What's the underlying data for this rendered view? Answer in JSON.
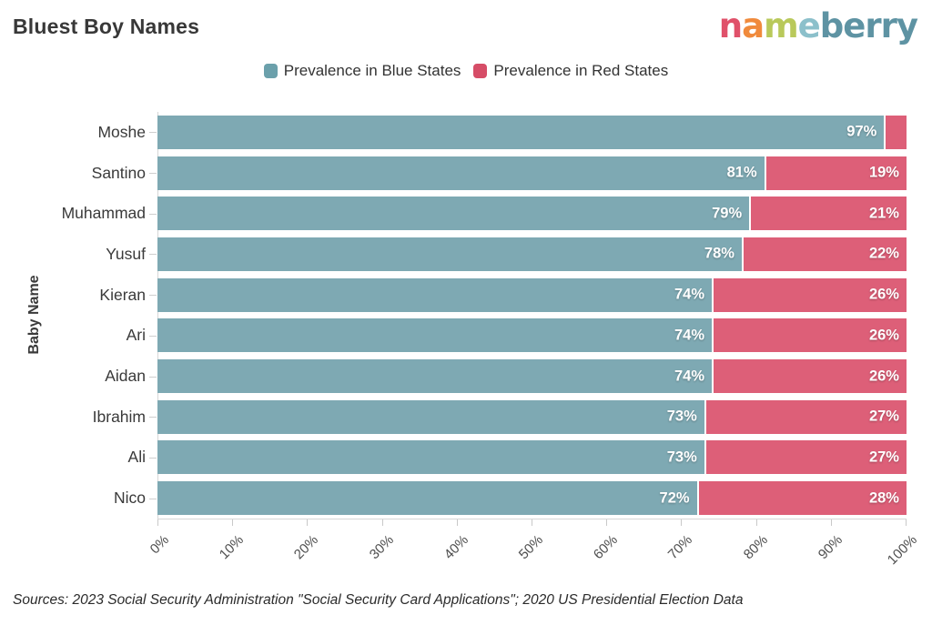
{
  "title": "Bluest Boy Names",
  "logo": {
    "text": "nameberry",
    "letters": [
      {
        "ch": "n",
        "color": "#e0516a"
      },
      {
        "ch": "a",
        "color": "#f08a3c"
      },
      {
        "ch": "m",
        "color": "#b9c95b"
      },
      {
        "ch": "e",
        "color": "#8cc0cb"
      },
      {
        "ch": "b",
        "color": "#5e93a3"
      },
      {
        "ch": "e",
        "color": "#5e93a3"
      },
      {
        "ch": "r",
        "color": "#5e93a3"
      },
      {
        "ch": "r",
        "color": "#5e93a3"
      },
      {
        "ch": "y",
        "color": "#5e93a3"
      }
    ]
  },
  "legend": [
    {
      "label": "Prevalence in Blue States",
      "color": "#6ba0ab"
    },
    {
      "label": "Prevalence in Red States",
      "color": "#d64d67"
    }
  ],
  "axis": {
    "y_label": "Baby Name"
  },
  "source": "Sources: 2023 Social Security Administration \"Social Security Card Applications\"; 2020 US Presidential Election Data",
  "chart_data": {
    "type": "bar",
    "orientation": "horizontal",
    "stacked": true,
    "title": "Bluest Boy Names",
    "xlabel": "",
    "ylabel": "Baby Name",
    "xlim": [
      0,
      100
    ],
    "grid": false,
    "legend_position": "top-center",
    "categories": [
      "Moshe",
      "Santino",
      "Muhammad",
      "Yusuf",
      "Kieran",
      "Ari",
      "Aidan",
      "Ibrahim",
      "Ali",
      "Nico"
    ],
    "series": [
      {
        "name": "Prevalence in Blue States",
        "color": "#7ea9b3",
        "values": [
          97,
          81,
          79,
          78,
          74,
          74,
          74,
          73,
          73,
          72
        ],
        "labels": [
          "97%",
          "81%",
          "79%",
          "78%",
          "74%",
          "74%",
          "74%",
          "73%",
          "73%",
          "72%"
        ]
      },
      {
        "name": "Prevalence in Red States",
        "color": "#dd5f78",
        "values": [
          3,
          19,
          21,
          22,
          26,
          26,
          26,
          27,
          27,
          28
        ],
        "labels": [
          "",
          "19%",
          "21%",
          "22%",
          "26%",
          "26%",
          "26%",
          "27%",
          "27%",
          "28%"
        ]
      }
    ],
    "x_tick_labels": [
      "0%",
      "10%",
      "20%",
      "30%",
      "40%",
      "50%",
      "60%",
      "70%",
      "80%",
      "90%",
      "100%"
    ]
  }
}
